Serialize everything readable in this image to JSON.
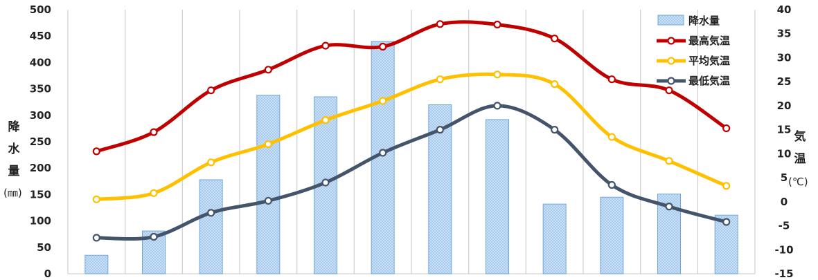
{
  "chart_data": {
    "type": "bar+line",
    "categories": [
      "",
      "",
      "",
      "",
      "",
      "",
      "",
      "",
      "",
      "",
      "",
      ""
    ],
    "bars": {
      "name": "降水量",
      "values": [
        35,
        81,
        178,
        338,
        335,
        440,
        320,
        292,
        132,
        145,
        151,
        111
      ],
      "color": "#cfe3f7",
      "edge": "#6fa8dc"
    },
    "lines": [
      {
        "name": "最高気温",
        "color": "#c00000",
        "values": [
          10.5,
          14.5,
          23.2,
          27.5,
          32.5,
          32.3,
          37.0,
          36.9,
          34.0,
          25.5,
          23.2,
          15.3
        ]
      },
      {
        "name": "平均気温",
        "color": "#ffc000",
        "values": [
          0.5,
          1.8,
          8.2,
          12.0,
          17.0,
          21.0,
          25.5,
          26.5,
          24.5,
          13.5,
          8.5,
          3.3
        ]
      },
      {
        "name": "最低気温",
        "color": "#44546a",
        "values": [
          -7.5,
          -7.3,
          -2.3,
          0.2,
          4.0,
          10.2,
          15.0,
          20.0,
          15.0,
          3.5,
          -1.0,
          -4.2
        ]
      }
    ],
    "y_left": {
      "label_chars": [
        "降",
        "水",
        "量"
      ],
      "unit": "(㎜)",
      "min": 0,
      "max": 500,
      "step": 50
    },
    "y_right": {
      "label_chars": [
        "気",
        "温"
      ],
      "unit": "(℃)",
      "min": -15,
      "max": 40,
      "step": 5
    },
    "grid": "vertical",
    "legend_position": "top-right"
  }
}
